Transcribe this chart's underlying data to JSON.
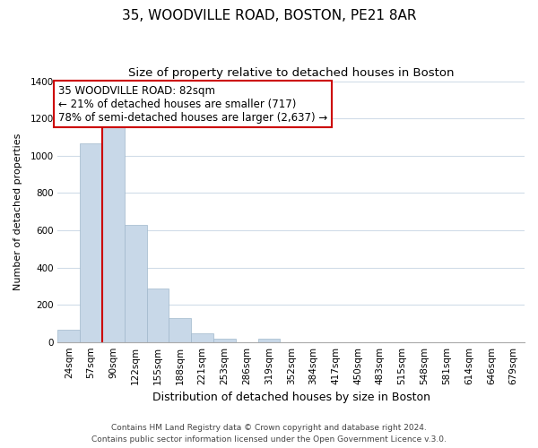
{
  "title": "35, WOODVILLE ROAD, BOSTON, PE21 8AR",
  "subtitle": "Size of property relative to detached houses in Boston",
  "xlabel": "Distribution of detached houses by size in Boston",
  "ylabel": "Number of detached properties",
  "bin_labels": [
    "24sqm",
    "57sqm",
    "90sqm",
    "122sqm",
    "155sqm",
    "188sqm",
    "221sqm",
    "253sqm",
    "286sqm",
    "319sqm",
    "352sqm",
    "384sqm",
    "417sqm",
    "450sqm",
    "483sqm",
    "515sqm",
    "548sqm",
    "581sqm",
    "614sqm",
    "646sqm",
    "679sqm"
  ],
  "bar_heights": [
    65,
    1068,
    1160,
    630,
    285,
    130,
    47,
    20,
    0,
    20,
    0,
    0,
    0,
    0,
    0,
    0,
    0,
    0,
    0,
    0,
    0
  ],
  "bar_color": "#c8d8e8",
  "bar_edge_color": "#a0b8cc",
  "property_line_x": 1.5,
  "property_line_color": "#cc0000",
  "annotation_text": "35 WOODVILLE ROAD: 82sqm\n← 21% of detached houses are smaller (717)\n78% of semi-detached houses are larger (2,637) →",
  "annotation_box_color": "#ffffff",
  "annotation_box_edge_color": "#cc0000",
  "ylim": [
    0,
    1400
  ],
  "yticks": [
    0,
    200,
    400,
    600,
    800,
    1000,
    1200,
    1400
  ],
  "footer_line1": "Contains HM Land Registry data © Crown copyright and database right 2024.",
  "footer_line2": "Contains public sector information licensed under the Open Government Licence v.3.0.",
  "background_color": "#ffffff",
  "grid_color": "#d0dce8",
  "title_fontsize": 11,
  "subtitle_fontsize": 9.5,
  "xlabel_fontsize": 9,
  "ylabel_fontsize": 8,
  "tick_fontsize": 7.5,
  "annotation_fontsize": 8.5,
  "footer_fontsize": 6.5
}
